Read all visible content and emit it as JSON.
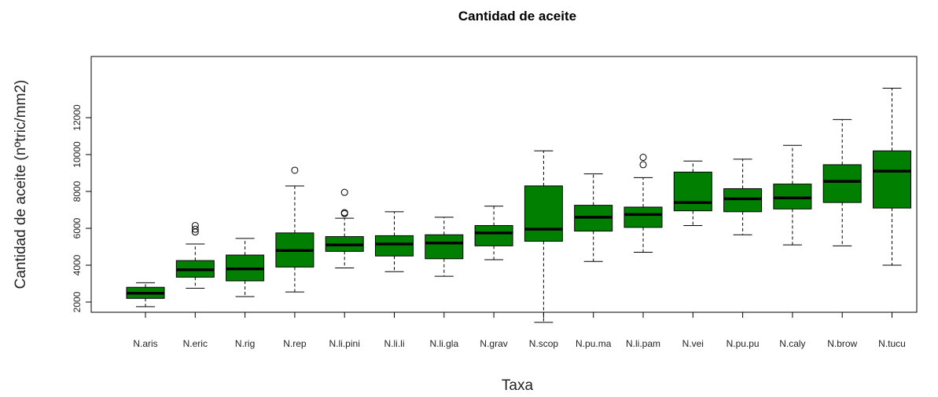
{
  "chart_data": {
    "type": "boxplot",
    "title": "Cantidad de aceite",
    "xlabel": "Taxa",
    "ylabel": "Cantidad de aceite (nºtric/mm2)",
    "ylim": [
      200,
      13800
    ],
    "yticks": [
      2000,
      4000,
      6000,
      8000,
      10000,
      12000
    ],
    "box_color": "#007F00",
    "grid": false,
    "categories": [
      "N.aris",
      "N.eric",
      "N.rig",
      "N.rep",
      "N.li.pini",
      "N.li.li",
      "N.li.gla",
      "N.grav",
      "N.scop",
      "N.pu.ma",
      "N.li.pam",
      "N.vei",
      "N.pu.pu",
      "N.caly",
      "N.brow",
      "N.tucu"
    ],
    "boxes": [
      {
        "min": 1750,
        "q1": 2200,
        "median": 2480,
        "q3": 2800,
        "max": 3050,
        "outliers": []
      },
      {
        "min": 2750,
        "q1": 3350,
        "median": 3750,
        "q3": 4250,
        "max": 5150,
        "outliers": [
          5800,
          5950,
          6150
        ]
      },
      {
        "min": 2300,
        "q1": 3150,
        "median": 3800,
        "q3": 4550,
        "max": 5450,
        "outliers": []
      },
      {
        "min": 2550,
        "q1": 3900,
        "median": 4800,
        "q3": 5750,
        "max": 8300,
        "outliers": [
          9150
        ]
      },
      {
        "min": 3850,
        "q1": 4750,
        "median": 5100,
        "q3": 5550,
        "max": 6550,
        "outliers": [
          6800,
          6850,
          7950
        ]
      },
      {
        "min": 3650,
        "q1": 4500,
        "median": 5150,
        "q3": 5600,
        "max": 6900,
        "outliers": []
      },
      {
        "min": 3400,
        "q1": 4350,
        "median": 5200,
        "q3": 5650,
        "max": 6600,
        "outliers": []
      },
      {
        "min": 4300,
        "q1": 5050,
        "median": 5750,
        "q3": 6150,
        "max": 7200,
        "outliers": []
      },
      {
        "min": 900,
        "q1": 5300,
        "median": 5950,
        "q3": 8300,
        "max": 10200,
        "outliers": []
      },
      {
        "min": 4200,
        "q1": 5850,
        "median": 6600,
        "q3": 7250,
        "max": 8950,
        "outliers": []
      },
      {
        "min": 4700,
        "q1": 6050,
        "median": 6750,
        "q3": 7150,
        "max": 8750,
        "outliers": [
          9450,
          9850
        ]
      },
      {
        "min": 6150,
        "q1": 6950,
        "median": 7400,
        "q3": 9050,
        "max": 9650,
        "outliers": []
      },
      {
        "min": 5650,
        "q1": 6900,
        "median": 7600,
        "q3": 8150,
        "max": 9750,
        "outliers": []
      },
      {
        "min": 5100,
        "q1": 7050,
        "median": 7650,
        "q3": 8400,
        "max": 10500,
        "outliers": []
      },
      {
        "min": 5050,
        "q1": 7400,
        "median": 8550,
        "q3": 9450,
        "max": 11900,
        "outliers": []
      },
      {
        "min": 4000,
        "q1": 7100,
        "median": 9100,
        "q3": 10200,
        "max": 13600,
        "outliers": []
      }
    ]
  }
}
